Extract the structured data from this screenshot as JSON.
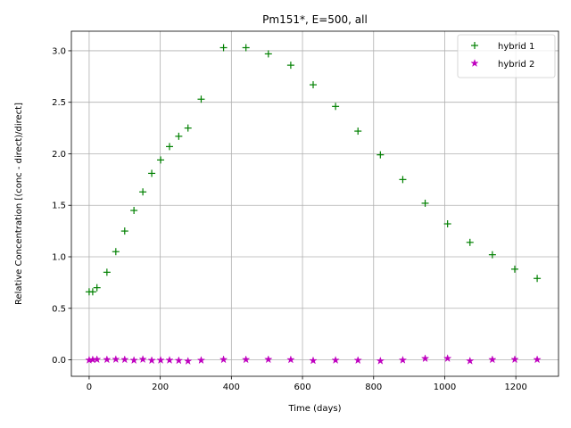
{
  "chart_data": {
    "type": "scatter",
    "title": "Pm151*, E=500, all",
    "xlabel": "Time (days)",
    "ylabel": "Relative Concentration [(conc - direct)/direct]",
    "xlim": [
      -50,
      1320
    ],
    "ylim": [
      -0.16,
      3.19
    ],
    "xticks": [
      0,
      200,
      400,
      600,
      800,
      1000,
      1200
    ],
    "xtick_labels": [
      "0",
      "200",
      "400",
      "600",
      "800",
      "1000",
      "1200"
    ],
    "yticks": [
      0.0,
      0.5,
      1.0,
      1.5,
      2.0,
      2.5,
      3.0
    ],
    "ytick_labels": [
      "0.0",
      "0.5",
      "1.0",
      "1.5",
      "2.0",
      "2.5",
      "3.0"
    ],
    "grid": true,
    "legend_position": "top-right",
    "series": [
      {
        "name": "hybrid 1",
        "marker": "plus",
        "color": "#008000",
        "x": [
          0,
          10,
          22,
          50,
          75,
          100,
          126,
          151,
          176,
          201,
          226,
          252,
          278,
          315,
          378,
          441,
          504,
          567,
          630,
          693,
          756,
          819,
          882,
          945,
          1008,
          1071,
          1134,
          1197,
          1260
        ],
        "y": [
          0.66,
          0.66,
          0.7,
          0.85,
          1.05,
          1.25,
          1.45,
          1.63,
          1.81,
          1.94,
          2.07,
          2.17,
          2.25,
          2.53,
          3.03,
          3.03,
          2.97,
          2.86,
          2.67,
          2.46,
          2.22,
          1.99,
          1.75,
          1.52,
          1.32,
          1.14,
          1.02,
          0.88,
          0.79
        ]
      },
      {
        "name": "hybrid 2",
        "marker": "star",
        "color": "#bf00bf",
        "x": [
          0,
          10,
          22,
          50,
          75,
          100,
          126,
          151,
          176,
          201,
          226,
          252,
          278,
          315,
          378,
          441,
          504,
          567,
          630,
          693,
          756,
          819,
          882,
          945,
          1008,
          1071,
          1134,
          1197,
          1260
        ],
        "y": [
          -0.003,
          0.001,
          0.003,
          0.002,
          0.004,
          0.002,
          -0.005,
          0.004,
          -0.006,
          -0.004,
          -0.004,
          -0.007,
          -0.013,
          -0.005,
          0.002,
          0.002,
          0.003,
          0.001,
          -0.008,
          -0.004,
          -0.005,
          -0.011,
          -0.003,
          0.012,
          0.013,
          -0.011,
          0.002,
          0.003,
          0.002
        ]
      }
    ]
  }
}
